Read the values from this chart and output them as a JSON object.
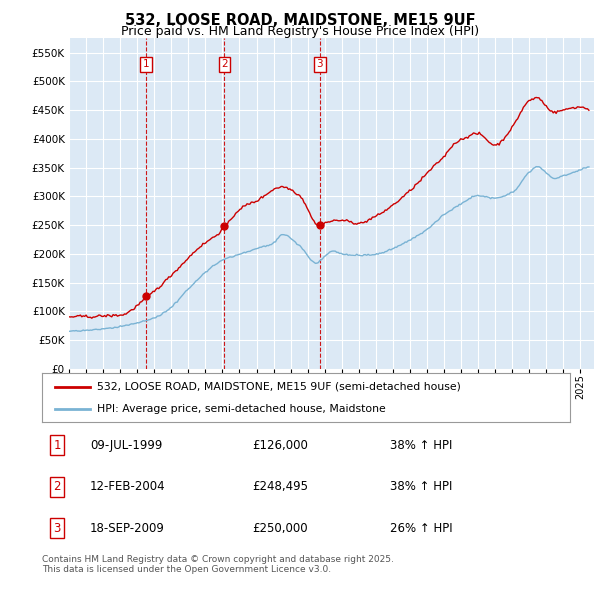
{
  "title1": "532, LOOSE ROAD, MAIDSTONE, ME15 9UF",
  "title2": "Price paid vs. HM Land Registry's House Price Index (HPI)",
  "plot_bg_color": "#dce9f5",
  "grid_color": "#ffffff",
  "red_color": "#cc0000",
  "blue_color": "#7ab3d4",
  "ylim": [
    0,
    575000
  ],
  "yticks": [
    0,
    50000,
    100000,
    150000,
    200000,
    250000,
    300000,
    350000,
    400000,
    450000,
    500000,
    550000
  ],
  "ytick_labels": [
    "£0",
    "£50K",
    "£100K",
    "£150K",
    "£200K",
    "£250K",
    "£300K",
    "£350K",
    "£400K",
    "£450K",
    "£500K",
    "£550K"
  ],
  "legend_line1": "532, LOOSE ROAD, MAIDSTONE, ME15 9UF (semi-detached house)",
  "legend_line2": "HPI: Average price, semi-detached house, Maidstone",
  "sale1_label": "1",
  "sale1_date": "09-JUL-1999",
  "sale1_price": "£126,000",
  "sale1_hpi": "38% ↑ HPI",
  "sale1_year": 1999.52,
  "sale1_value": 126000,
  "sale2_label": "2",
  "sale2_date": "12-FEB-2004",
  "sale2_price": "£248,495",
  "sale2_hpi": "38% ↑ HPI",
  "sale2_year": 2004.12,
  "sale2_value": 248495,
  "sale3_label": "3",
  "sale3_date": "18-SEP-2009",
  "sale3_price": "£250,000",
  "sale3_hpi": "26% ↑ HPI",
  "sale3_year": 2009.71,
  "sale3_value": 250000,
  "footer": "Contains HM Land Registry data © Crown copyright and database right 2025.\nThis data is licensed under the Open Government Licence v3.0."
}
